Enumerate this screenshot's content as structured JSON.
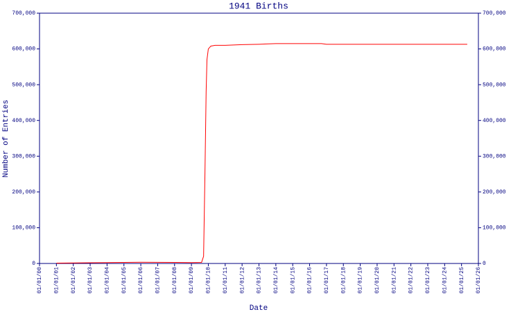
{
  "chart_data": {
    "type": "line",
    "title": "1941 Births",
    "x_label": "Date",
    "y_label": "Number of Entries",
    "xlim": [
      0,
      26
    ],
    "xticks": [
      {
        "value": 0,
        "label": "01/01/00"
      },
      {
        "value": 1,
        "label": "01/01/01"
      },
      {
        "value": 2,
        "label": "01/01/02"
      },
      {
        "value": 3,
        "label": "01/01/03"
      },
      {
        "value": 4,
        "label": "01/01/04"
      },
      {
        "value": 5,
        "label": "01/01/05"
      },
      {
        "value": 6,
        "label": "01/01/06"
      },
      {
        "value": 7,
        "label": "01/01/07"
      },
      {
        "value": 8,
        "label": "01/01/08"
      },
      {
        "value": 9,
        "label": "01/01/09"
      },
      {
        "value": 10,
        "label": "01/01/10"
      },
      {
        "value": 11,
        "label": "01/01/11"
      },
      {
        "value": 12,
        "label": "01/01/12"
      },
      {
        "value": 13,
        "label": "01/01/13"
      },
      {
        "value": 14,
        "label": "01/01/14"
      },
      {
        "value": 15,
        "label": "01/01/15"
      },
      {
        "value": 16,
        "label": "01/01/16"
      },
      {
        "value": 17,
        "label": "01/01/17"
      },
      {
        "value": 18,
        "label": "01/01/18"
      },
      {
        "value": 19,
        "label": "01/01/19"
      },
      {
        "value": 20,
        "label": "01/01/20"
      },
      {
        "value": 21,
        "label": "01/01/21"
      },
      {
        "value": 22,
        "label": "01/01/22"
      },
      {
        "value": 23,
        "label": "01/01/23"
      },
      {
        "value": 24,
        "label": "01/01/24"
      },
      {
        "value": 25,
        "label": "01/01/25"
      },
      {
        "value": 26,
        "label": "01/01/26"
      }
    ],
    "ylim": [
      0,
      700000
    ],
    "yticks": [
      0,
      {
        "value": 100000,
        "label": "100,000"
      },
      {
        "value": 200000,
        "label": "200,000"
      },
      {
        "value": 300000,
        "label": "300,000"
      },
      {
        "value": 400000,
        "label": "400,000"
      },
      {
        "value": 500000,
        "label": "500,000"
      },
      {
        "value": 600000,
        "label": "600,000"
      },
      {
        "value": 700000,
        "label": "700,000"
      }
    ],
    "y2lim": [
      0,
      700000
    ],
    "y2ticks": [
      0,
      {
        "value": 100000,
        "label": "100,000"
      },
      {
        "value": 200000,
        "label": "200,000"
      },
      {
        "value": 300000,
        "label": "300,000"
      },
      {
        "value": 400000,
        "label": "400,000"
      },
      {
        "value": 500000,
        "label": "500,000"
      },
      {
        "value": 600000,
        "label": "600,000"
      },
      {
        "value": 700000,
        "label": "700,000"
      }
    ],
    "series": [
      {
        "name": "1941 Births",
        "color": "#ff0000",
        "x": [
          1,
          2,
          4,
          6,
          8,
          9,
          9.6,
          9.72,
          9.8,
          9.87,
          9.92,
          10,
          10.15,
          10.4,
          11,
          12,
          13,
          14,
          15,
          16,
          16.7,
          17,
          20,
          25.34
        ],
        "values": [
          1000,
          1500,
          2500,
          3500,
          3000,
          2500,
          3000,
          20000,
          250000,
          480000,
          570000,
          600000,
          608000,
          610000,
          610000,
          612000,
          613000,
          615000,
          615000,
          615000,
          615000,
          613000,
          613000,
          613000
        ]
      }
    ]
  }
}
